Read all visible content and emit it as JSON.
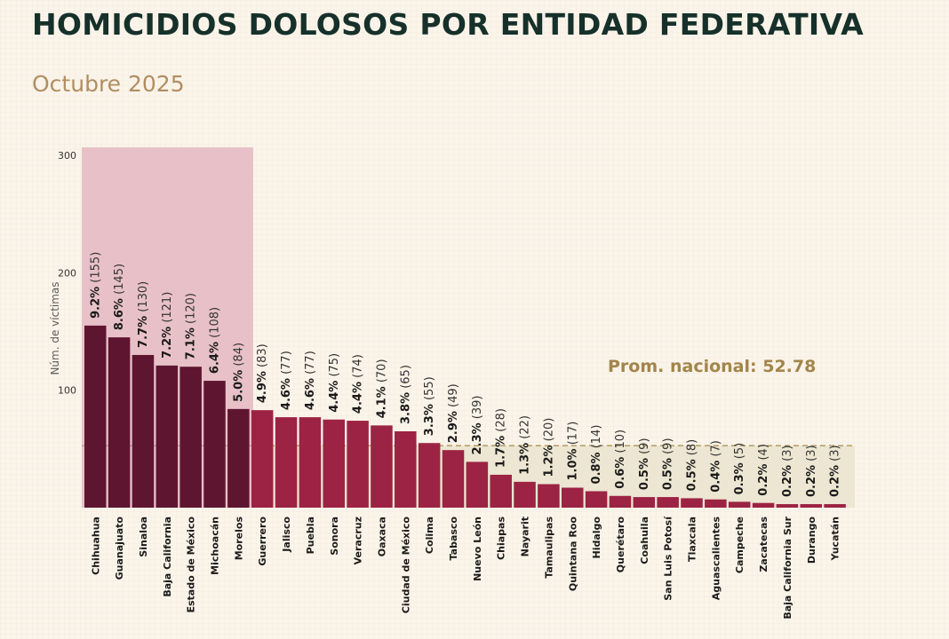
{
  "header": {
    "title": "HOMICIDIOS DOLOSOS POR ENTIDAD FEDERATIVA",
    "subtitle": "Octubre 2025"
  },
  "chart_data": {
    "type": "bar",
    "ylabel": "Núm. de víctimas",
    "ylim": [
      0,
      300
    ],
    "yticks": [
      100,
      200,
      300
    ],
    "categories": [
      "Chihuahua",
      "Guanajuato",
      "Sinaloa",
      "Baja California",
      "Estado de México",
      "Michoacán",
      "Morelos",
      "Guerrero",
      "Jalisco",
      "Puebla",
      "Sonora",
      "Veracruz",
      "Oaxaca",
      "Ciudad de México",
      "Colima",
      "Tabasco",
      "Nuevo León",
      "Chiapas",
      "Nayarit",
      "Tamaulipas",
      "Quintana Roo",
      "Hidalgo",
      "Querétaro",
      "Coahuila",
      "San Luis Potosí",
      "Tlaxcala",
      "Aguascalientes",
      "Campeche",
      "Zacatecas",
      "Baja California Sur",
      "Durango",
      "Yucatán"
    ],
    "values": [
      155,
      145,
      130,
      121,
      120,
      108,
      84,
      83,
      77,
      77,
      75,
      74,
      70,
      65,
      55,
      49,
      39,
      28,
      22,
      20,
      17,
      14,
      10,
      9,
      9,
      8,
      7,
      5,
      4,
      3,
      3,
      3
    ],
    "percent_labels": [
      "9.2%",
      "8.6%",
      "7.7%",
      "7.2%",
      "7.1%",
      "6.4%",
      "5.0%",
      "4.9%",
      "4.6%",
      "4.6%",
      "4.4%",
      "4.4%",
      "4.1%",
      "3.8%",
      "3.3%",
      "2.9%",
      "2.3%",
      "1.7%",
      "1.3%",
      "1.2%",
      "1.0%",
      "0.8%",
      "0.6%",
      "0.5%",
      "0.5%",
      "0.5%",
      "0.4%",
      "0.3%",
      "0.2%",
      "0.2%",
      "0.2%",
      "0.2%"
    ],
    "count_labels": [
      "(155)",
      "(145)",
      "(130)",
      "(121)",
      "(120)",
      "(108)",
      "(84)",
      "(83)",
      "(77)",
      "(77)",
      "(75)",
      "(74)",
      "(70)",
      "(65)",
      "(55)",
      "(49)",
      "(39)",
      "(28)",
      "(22)",
      "(20)",
      "(17)",
      "(14)",
      "(10)",
      "(9)",
      "(9)",
      "(8)",
      "(7)",
      "(5)",
      "(4)",
      "(3)",
      "(3)",
      "(3)"
    ],
    "highlighted_count": 7,
    "average": {
      "label": "Prom. nacional: 52.78",
      "value": 52.78
    },
    "colors": {
      "top_bars": "#5e1530",
      "other_bars": "#9c2343",
      "highlight_band": "#e8c1c8",
      "average_band": "#ece6d2",
      "average_text": "#a2854a",
      "average_line": "#b29a62"
    },
    "grid": false
  }
}
